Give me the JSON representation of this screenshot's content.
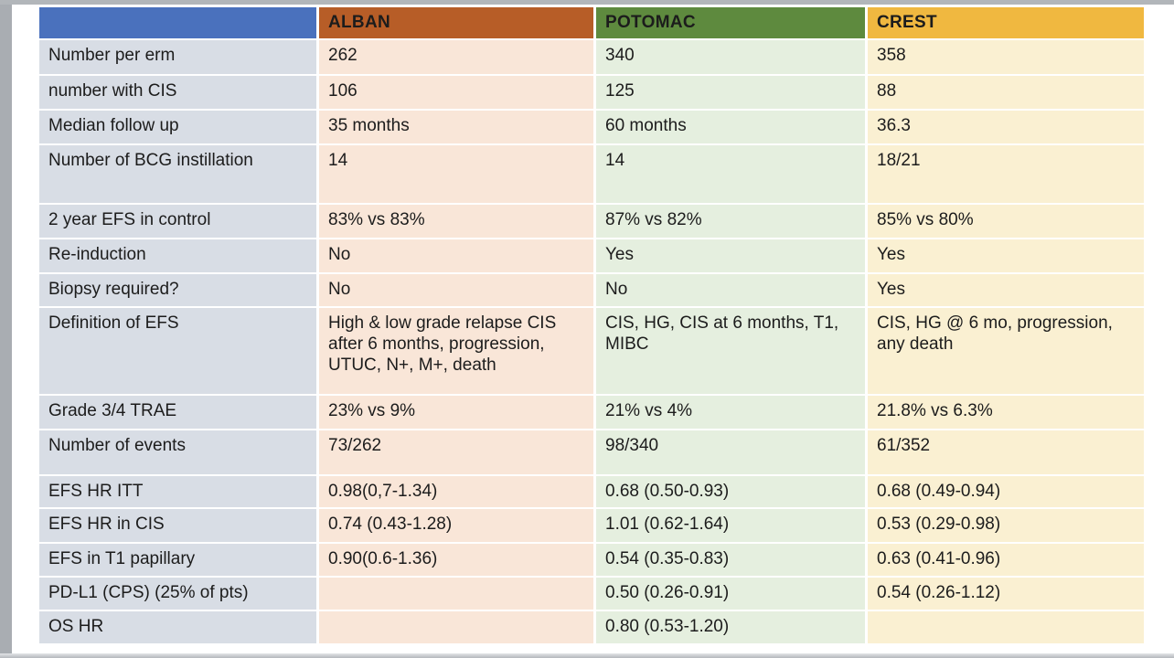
{
  "table": {
    "header": {
      "blank": "",
      "alban": "ALBAN",
      "potomac": "POTOMAC",
      "crest": "CREST"
    },
    "rows": [
      {
        "label": "Number per erm",
        "alban": "262",
        "potomac": "340",
        "crest": "358"
      },
      {
        "label": " number with CIS",
        "alban": "106",
        "potomac": "125",
        "crest": "88"
      },
      {
        "label": "Median follow up",
        "alban": "35 months",
        "potomac": "60 months",
        "crest": "36.3"
      },
      {
        "label": "Number of BCG instillation",
        "alban": "14",
        "potomac": "14",
        "crest": "18/21"
      },
      {
        "label": "2 year EFS in control",
        "alban": "83% vs 83%",
        "potomac": "87% vs 82%",
        "crest": "85% vs 80%"
      },
      {
        "label": "Re-induction",
        "alban": "No",
        "potomac": "Yes",
        "crest": "Yes"
      },
      {
        "label": "Biopsy required?",
        "alban": "No",
        "potomac": "No",
        "crest": "Yes"
      },
      {
        "label": "Definition of EFS",
        "alban": "High & low grade relapse  CIS after 6 months, progression, UTUC, N+, M+, death",
        "potomac": "CIS, HG, CIS at 6 months, T1, MIBC",
        "crest": "CIS, HG @ 6 mo, progression, any death"
      },
      {
        "label": "Grade 3/4 TRAE",
        "alban": "23% vs 9%",
        "potomac": "21% vs 4%",
        "crest": "21.8% vs 6.3%"
      },
      {
        "label": "Number of events",
        "alban": "73/262",
        "potomac": "98/340",
        "crest": "61/352"
      },
      {
        "label": "EFS HR ITT",
        "alban": "0.98(0,7-1.34)",
        "potomac": "0.68 (0.50-0.93)",
        "crest": "0.68 (0.49-0.94)"
      },
      {
        "label": "EFS HR in CIS",
        "alban": "0.74 (0.43-1.28)",
        "potomac": "1.01 (0.62-1.64)",
        "crest": "0.53 (0.29-0.98)"
      },
      {
        "label": "EFS in T1 papillary",
        "alban": "0.90(0.6-1.36)",
        "potomac": "0.54 (0.35-0.83)",
        "crest": "0.63 (0.41-0.96)"
      },
      {
        "label": "PD-L1 (CPS) (25% of pts)",
        "alban": "",
        "potomac": "0.50 (0.26-0.91)",
        "crest": "0.54 (0.26-1.12)"
      },
      {
        "label": "OS HR",
        "alban": "",
        "potomac": "0.80 (0.53-1.20)",
        "crest": ""
      }
    ],
    "colors": {
      "header_blue": "#4a71bd",
      "header_alban": "#b75d27",
      "header_potomac": "#5e8a3e",
      "header_crest": "#f0b840",
      "label_bg": "#d8dde5",
      "alban_bg": "#f9e6d8",
      "potomac_bg": "#e5efdf",
      "crest_bg": "#faf0d2",
      "frame_gray": "#a9adb2",
      "text": "#1c1c1c"
    }
  }
}
